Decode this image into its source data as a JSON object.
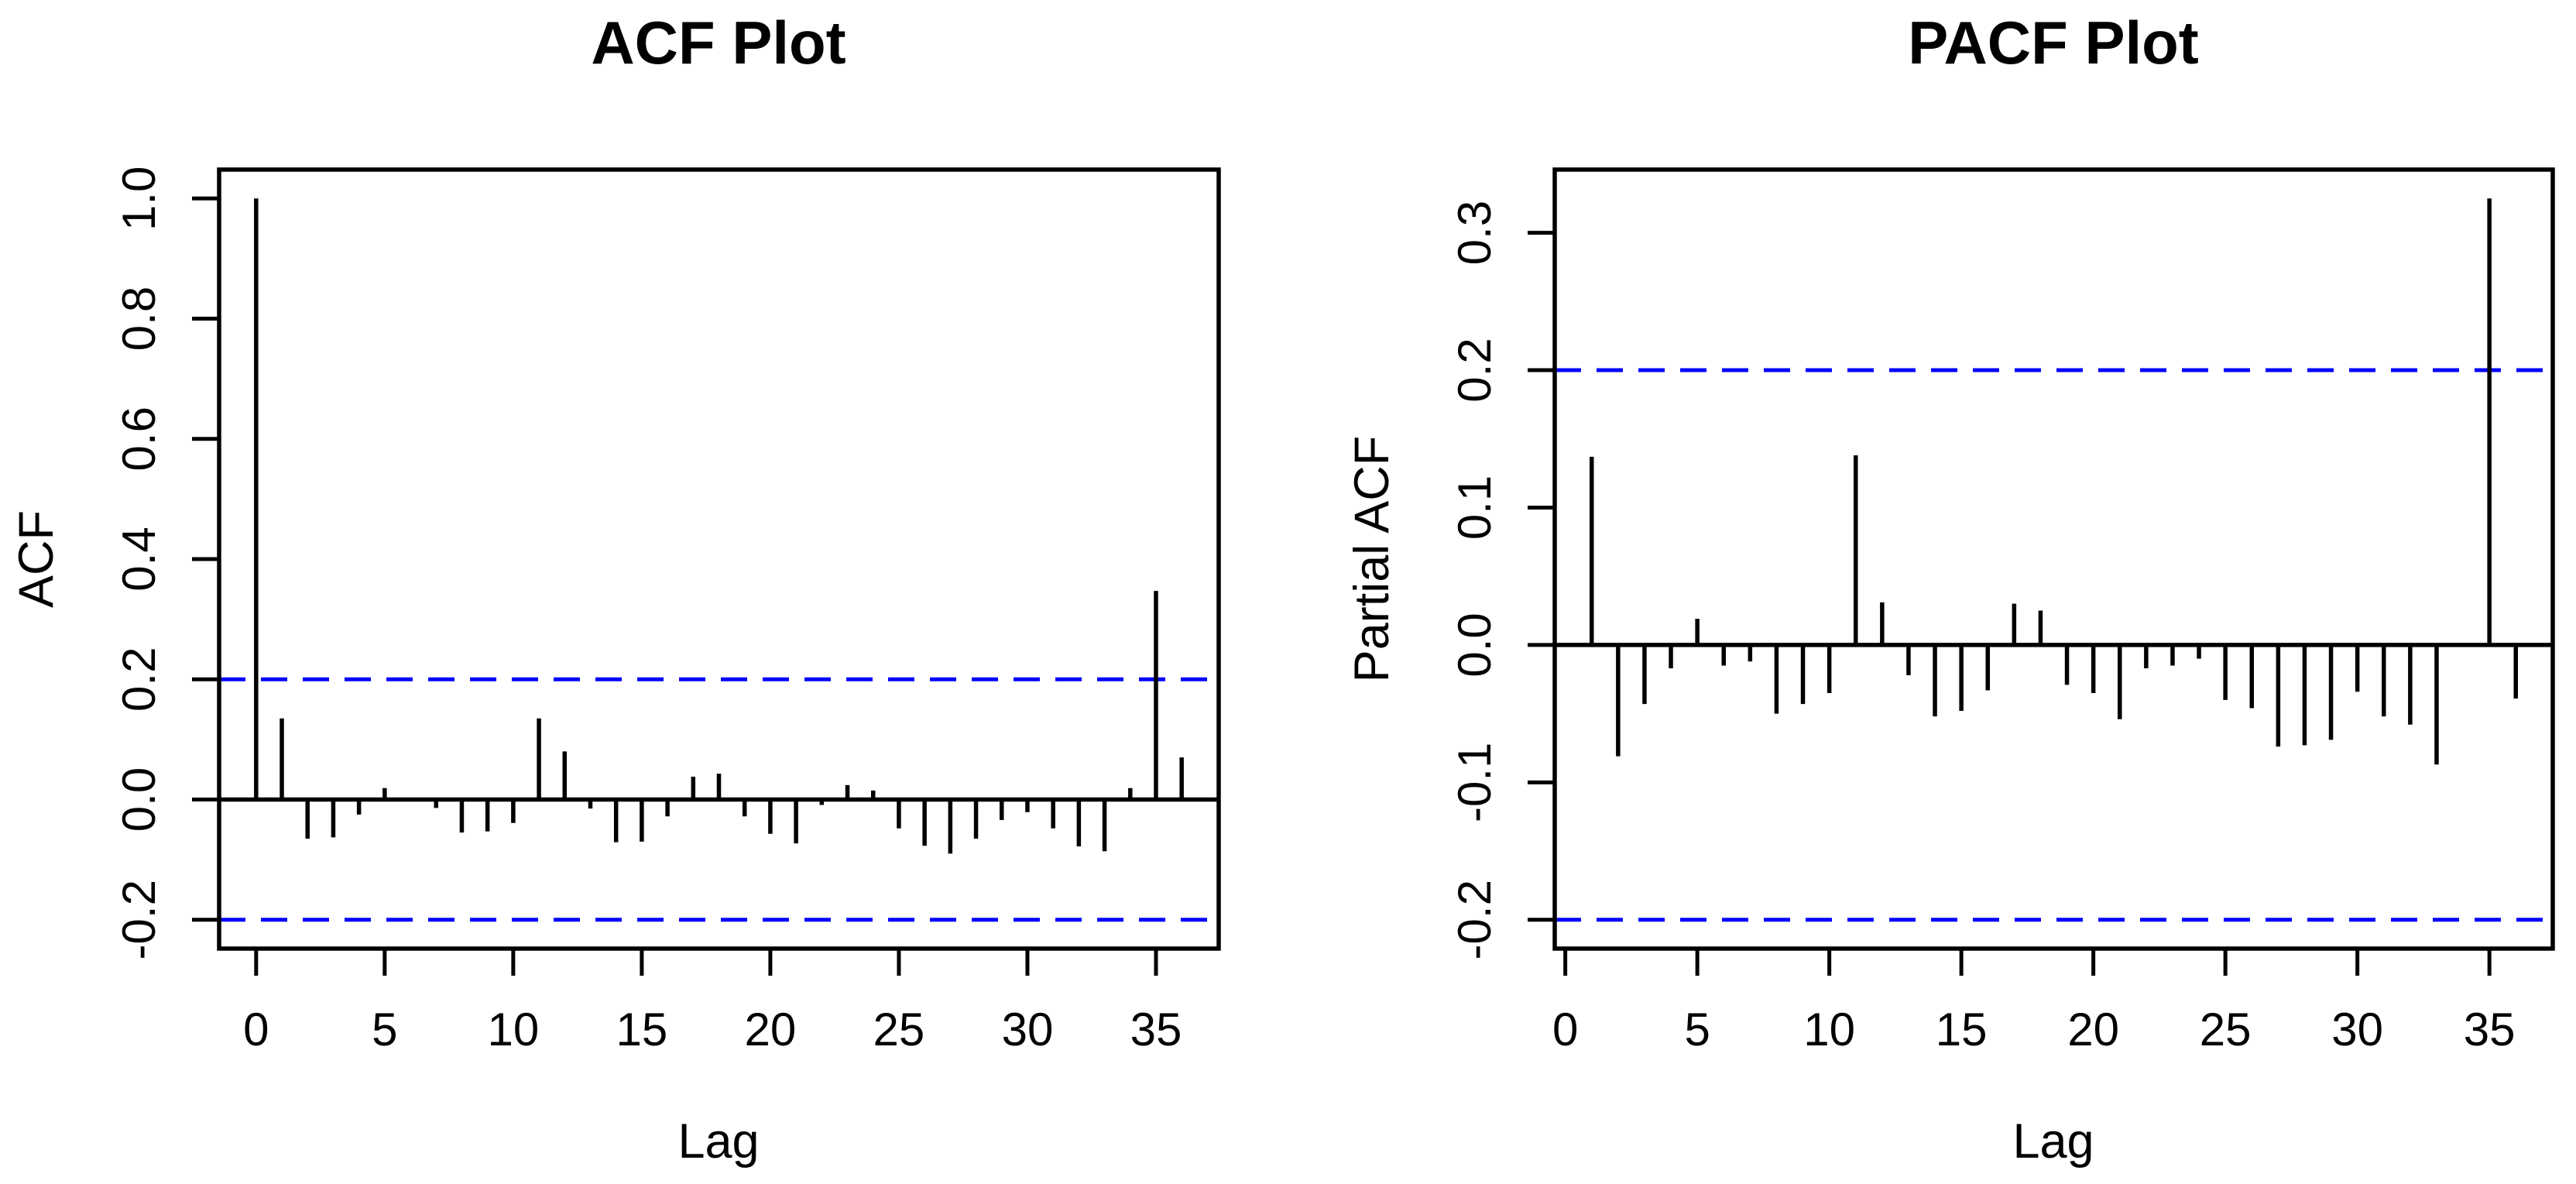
{
  "page": {
    "background": "#ffffff"
  },
  "chart_data": [
    {
      "type": "bar",
      "style": "stem",
      "title": "ACF Plot",
      "xlabel": "Lag",
      "ylabel": "ACF",
      "x_ticks": [
        0,
        5,
        10,
        15,
        20,
        25,
        30,
        35
      ],
      "y_ticks": [
        1.0,
        0.8,
        0.6,
        0.4,
        0.2,
        0.0,
        -0.2
      ],
      "y_tick_labels": [
        "1.0",
        "0.8",
        "0.6",
        "0.4",
        "0.2",
        "0.0",
        "-0.2"
      ],
      "xlim": [
        -1.44,
        37.44
      ],
      "ylim": [
        -0.248,
        1.048
      ],
      "grid": false,
      "conf_bounds": [
        0.2,
        -0.2
      ],
      "conf_line_color": "#0000ff",
      "conf_line_style": "dashed",
      "bar_color": "#000000",
      "lags": [
        0,
        1,
        2,
        3,
        4,
        5,
        6,
        7,
        8,
        9,
        10,
        11,
        12,
        13,
        14,
        15,
        16,
        17,
        18,
        19,
        20,
        21,
        22,
        23,
        24,
        25,
        26,
        27,
        28,
        29,
        30,
        31,
        32,
        33,
        34,
        35,
        36
      ],
      "values": [
        1.0,
        0.135,
        -0.065,
        -0.063,
        -0.025,
        0.019,
        0.0,
        -0.014,
        -0.055,
        -0.053,
        -0.039,
        0.135,
        0.08,
        -0.015,
        -0.071,
        -0.07,
        -0.028,
        0.038,
        0.043,
        -0.028,
        -0.057,
        -0.073,
        -0.009,
        0.024,
        0.015,
        -0.048,
        -0.077,
        -0.09,
        -0.065,
        -0.034,
        -0.021,
        -0.048,
        -0.078,
        -0.086,
        0.019,
        0.347,
        0.07
      ]
    },
    {
      "type": "bar",
      "style": "stem",
      "title": "PACF Plot",
      "xlabel": "Lag",
      "ylabel": "Partial ACF",
      "x_ticks": [
        0,
        5,
        10,
        15,
        20,
        25,
        30,
        35
      ],
      "y_ticks": [
        0.3,
        0.2,
        0.1,
        0.0,
        -0.1,
        -0.2
      ],
      "y_tick_labels": [
        "0.3",
        "0.2",
        "0.1",
        "0.0",
        "-0.1",
        "-0.2"
      ],
      "xlim": [
        -0.4,
        37.4
      ],
      "ylim": [
        -0.221,
        0.346
      ],
      "grid": false,
      "conf_bounds": [
        0.2,
        -0.2
      ],
      "conf_line_color": "#0000ff",
      "conf_line_style": "dashed",
      "bar_color": "#000000",
      "lags": [
        1,
        2,
        3,
        4,
        5,
        6,
        7,
        8,
        9,
        10,
        11,
        12,
        13,
        14,
        15,
        16,
        17,
        18,
        19,
        20,
        21,
        22,
        23,
        24,
        25,
        26,
        27,
        28,
        29,
        30,
        31,
        32,
        33,
        34,
        35,
        36
      ],
      "values": [
        0.137,
        -0.081,
        -0.043,
        -0.017,
        0.019,
        -0.015,
        -0.012,
        -0.05,
        -0.043,
        -0.035,
        0.138,
        0.031,
        -0.022,
        -0.052,
        -0.048,
        -0.033,
        0.03,
        0.025,
        -0.029,
        -0.035,
        -0.054,
        -0.017,
        -0.015,
        -0.01,
        -0.04,
        -0.046,
        -0.074,
        -0.073,
        -0.069,
        -0.034,
        -0.052,
        -0.058,
        -0.087,
        0.0,
        0.325,
        -0.039
      ]
    }
  ]
}
